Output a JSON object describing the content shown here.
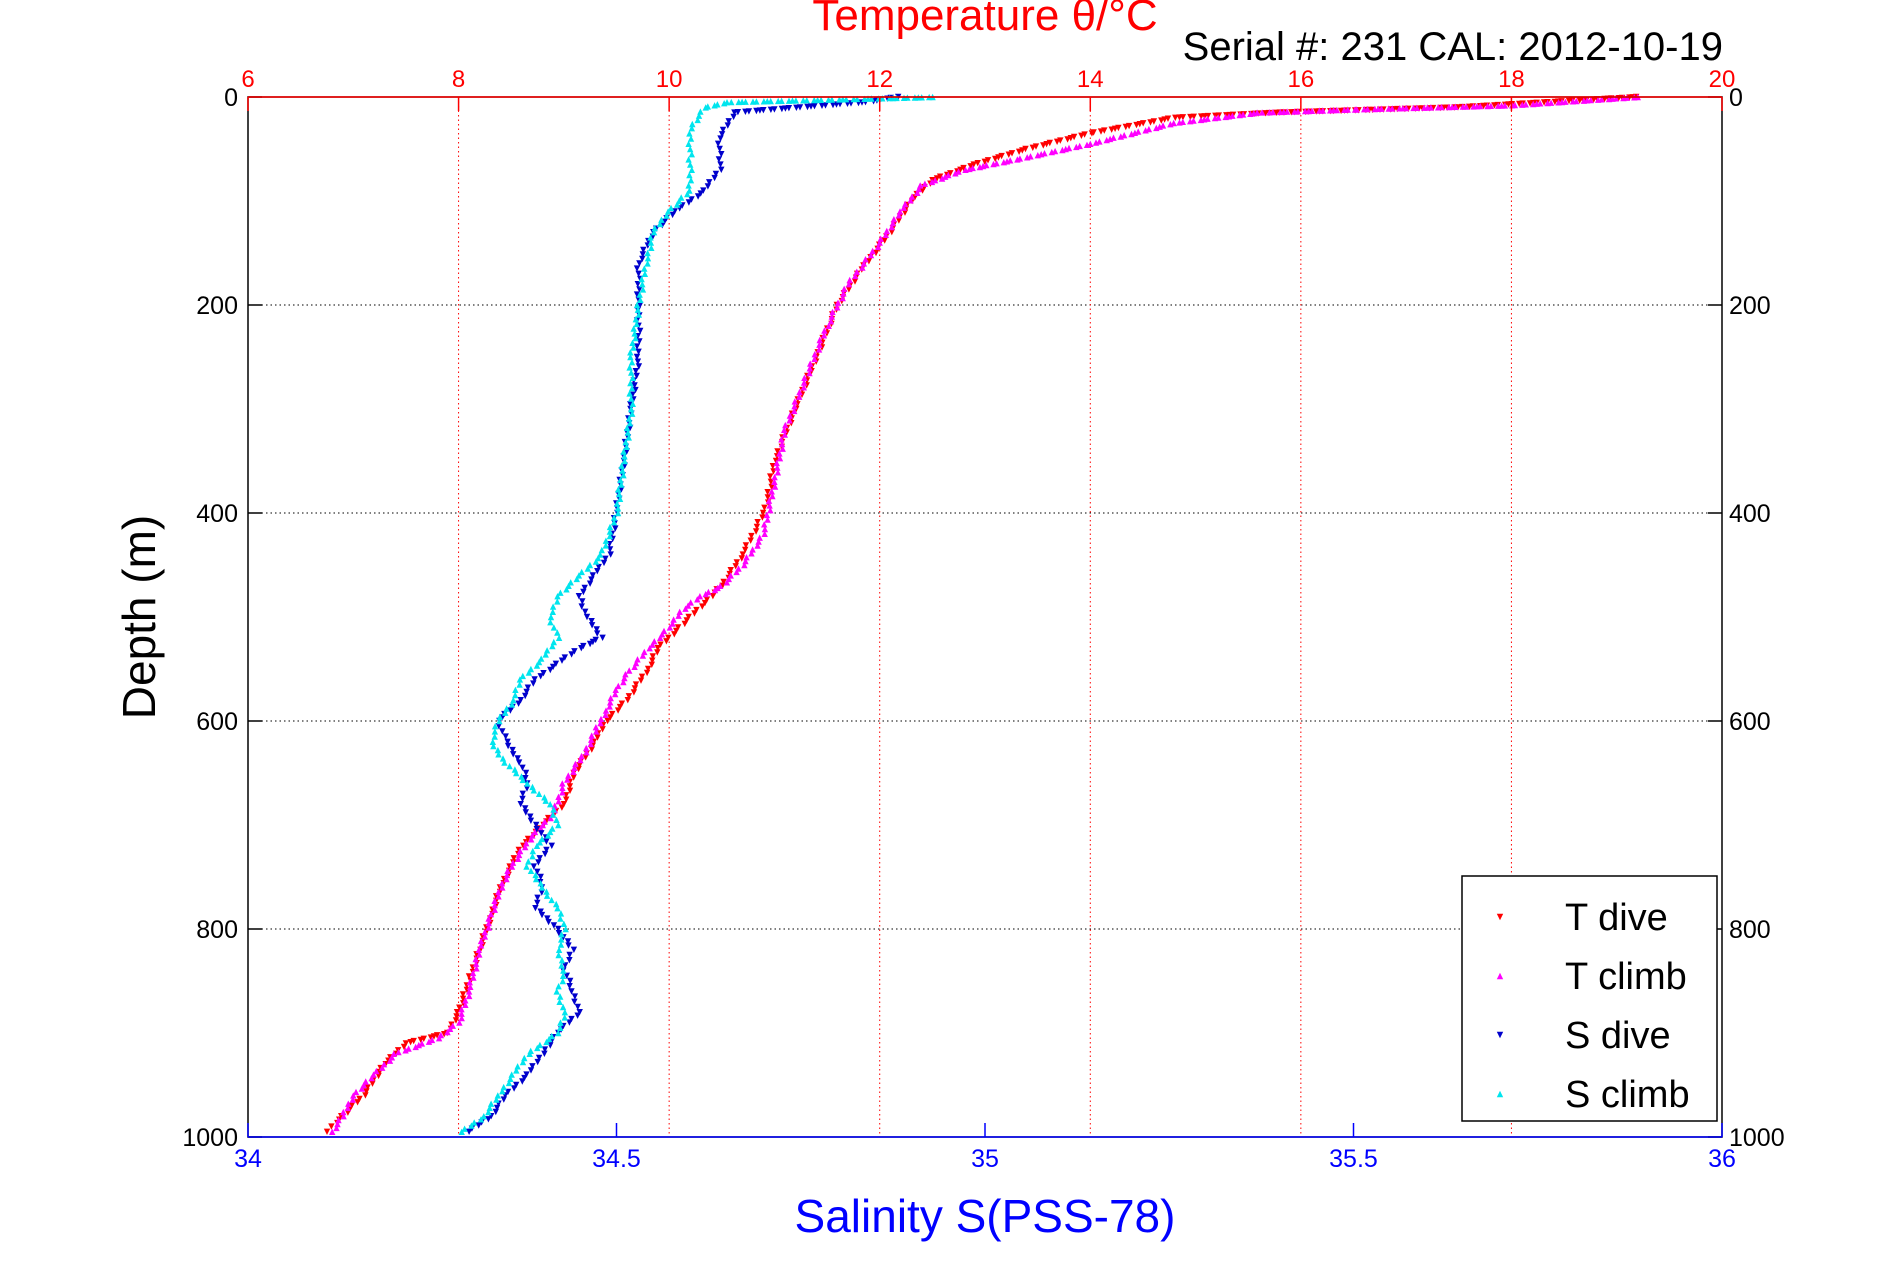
{
  "header": {
    "title": "Temperature θ/°C",
    "subtitle": "Serial #: 231  CAL: 2012-10-19"
  },
  "colors": {
    "background": "#ffffff",
    "temperature_axis": "#ff0000",
    "salinity_axis": "#0000ff",
    "t_dive": "#ff0000",
    "t_climb": "#ff00ff",
    "s_dive": "#0000cc",
    "s_climb": "#00e5ee",
    "grid": "#000000"
  },
  "chart_data": {
    "type": "scatter",
    "title": "Temperature θ/°C",
    "subtitle": "Serial #: 231  CAL: 2012-10-19",
    "ylabel": "Depth (m)",
    "xlabel": "Salinity S(PSS-78)",
    "x_top_label": "Temperature θ/°C",
    "y_reversed": true,
    "grid": true,
    "legend_position": "bottom-right",
    "axes": {
      "depth": {
        "range": [
          0,
          1000
        ],
        "ticks": [
          0,
          200,
          400,
          600,
          800,
          1000
        ]
      },
      "salinity": {
        "range": [
          34,
          36
        ],
        "ticks": [
          34,
          34.5,
          35,
          35.5,
          36
        ],
        "tick_labels": [
          "34",
          "34.5",
          "35",
          "35.5",
          "36"
        ]
      },
      "temperature": {
        "range": [
          6,
          20
        ],
        "ticks": [
          6,
          8,
          10,
          12,
          14,
          16,
          18,
          20
        ],
        "tick_labels": [
          "6",
          "8",
          "10",
          "12",
          "14",
          "16",
          "18",
          "20"
        ]
      }
    },
    "series": [
      {
        "name": "T dive",
        "axis": "temperature",
        "marker": "triangle-down",
        "points": [
          [
            19.2,
            0
          ],
          [
            17.5,
            10
          ],
          [
            15.8,
            15
          ],
          [
            14.8,
            20
          ],
          [
            14.0,
            35
          ],
          [
            13.4,
            50
          ],
          [
            12.9,
            65
          ],
          [
            12.5,
            80
          ],
          [
            12.3,
            100
          ],
          [
            12.1,
            130
          ],
          [
            11.8,
            170
          ],
          [
            11.6,
            200
          ],
          [
            11.4,
            250
          ],
          [
            11.2,
            300
          ],
          [
            11.0,
            350
          ],
          [
            10.95,
            380
          ],
          [
            10.9,
            400
          ],
          [
            10.7,
            440
          ],
          [
            10.5,
            470
          ],
          [
            10.3,
            490
          ],
          [
            10.1,
            510
          ],
          [
            9.9,
            530
          ],
          [
            9.8,
            550
          ],
          [
            9.6,
            580
          ],
          [
            9.4,
            600
          ],
          [
            9.3,
            620
          ],
          [
            9.1,
            650
          ],
          [
            9.0,
            680
          ],
          [
            8.8,
            700
          ],
          [
            8.6,
            720
          ],
          [
            8.5,
            740
          ],
          [
            8.4,
            760
          ],
          [
            8.3,
            790
          ],
          [
            8.2,
            820
          ],
          [
            8.1,
            850
          ],
          [
            8.0,
            880
          ],
          [
            7.9,
            900
          ],
          [
            7.5,
            910
          ],
          [
            7.3,
            930
          ],
          [
            7.1,
            960
          ],
          [
            6.9,
            980
          ],
          [
            6.8,
            990
          ],
          [
            6.75,
            995
          ]
        ]
      },
      {
        "name": "T climb",
        "axis": "temperature",
        "marker": "triangle-up",
        "points": [
          [
            19.2,
            0
          ],
          [
            18.0,
            8
          ],
          [
            16.5,
            12
          ],
          [
            15.6,
            15
          ],
          [
            14.8,
            25
          ],
          [
            14.0,
            45
          ],
          [
            13.3,
            60
          ],
          [
            12.8,
            70
          ],
          [
            12.4,
            85
          ],
          [
            12.2,
            110
          ],
          [
            12.0,
            140
          ],
          [
            11.7,
            180
          ],
          [
            11.5,
            220
          ],
          [
            11.3,
            270
          ],
          [
            11.1,
            320
          ],
          [
            11.0,
            370
          ],
          [
            10.9,
            420
          ],
          [
            10.7,
            450
          ],
          [
            10.5,
            470
          ],
          [
            10.3,
            480
          ],
          [
            10.1,
            495
          ],
          [
            10.0,
            510
          ],
          [
            9.8,
            530
          ],
          [
            9.6,
            555
          ],
          [
            9.5,
            570
          ],
          [
            9.4,
            590
          ],
          [
            9.3,
            610
          ],
          [
            9.2,
            630
          ],
          [
            9.0,
            660
          ],
          [
            8.9,
            690
          ],
          [
            8.7,
            710
          ],
          [
            8.5,
            740
          ],
          [
            8.4,
            760
          ],
          [
            8.3,
            790
          ],
          [
            8.2,
            820
          ],
          [
            8.1,
            860
          ],
          [
            8.0,
            890
          ],
          [
            7.8,
            905
          ],
          [
            7.4,
            920
          ],
          [
            7.2,
            940
          ],
          [
            7.0,
            960
          ],
          [
            6.9,
            980
          ],
          [
            6.8,
            995
          ]
        ]
      },
      {
        "name": "S dive",
        "axis": "salinity",
        "marker": "triangle-down",
        "points": [
          [
            34.88,
            0
          ],
          [
            34.84,
            5
          ],
          [
            34.75,
            10
          ],
          [
            34.66,
            15
          ],
          [
            34.64,
            40
          ],
          [
            34.64,
            70
          ],
          [
            34.62,
            90
          ],
          [
            34.58,
            110
          ],
          [
            34.55,
            130
          ],
          [
            34.53,
            160
          ],
          [
            34.53,
            200
          ],
          [
            34.53,
            250
          ],
          [
            34.52,
            300
          ],
          [
            34.51,
            350
          ],
          [
            34.5,
            400
          ],
          [
            34.49,
            440
          ],
          [
            34.47,
            460
          ],
          [
            34.45,
            480
          ],
          [
            34.46,
            500
          ],
          [
            34.48,
            520
          ],
          [
            34.45,
            530
          ],
          [
            34.42,
            545
          ],
          [
            34.39,
            560
          ],
          [
            34.37,
            580
          ],
          [
            34.34,
            600
          ],
          [
            34.35,
            620
          ],
          [
            34.37,
            640
          ],
          [
            34.38,
            660
          ],
          [
            34.37,
            680
          ],
          [
            34.39,
            700
          ],
          [
            34.41,
            720
          ],
          [
            34.39,
            740
          ],
          [
            34.4,
            760
          ],
          [
            34.39,
            780
          ],
          [
            34.42,
            800
          ],
          [
            34.44,
            820
          ],
          [
            34.43,
            840
          ],
          [
            34.44,
            860
          ],
          [
            34.45,
            880
          ],
          [
            34.42,
            900
          ],
          [
            34.4,
            920
          ],
          [
            34.38,
            940
          ],
          [
            34.35,
            960
          ],
          [
            34.33,
            980
          ],
          [
            34.3,
            995
          ]
        ]
      },
      {
        "name": "S climb",
        "axis": "salinity",
        "marker": "triangle-up",
        "points": [
          [
            34.93,
            0
          ],
          [
            34.65,
            5
          ],
          [
            34.62,
            10
          ],
          [
            34.6,
            30
          ],
          [
            34.6,
            60
          ],
          [
            34.6,
            90
          ],
          [
            34.57,
            110
          ],
          [
            34.55,
            130
          ],
          [
            34.54,
            160
          ],
          [
            34.53,
            200
          ],
          [
            34.52,
            250
          ],
          [
            34.52,
            300
          ],
          [
            34.51,
            350
          ],
          [
            34.5,
            400
          ],
          [
            34.48,
            440
          ],
          [
            34.45,
            460
          ],
          [
            34.42,
            480
          ],
          [
            34.41,
            500
          ],
          [
            34.42,
            520
          ],
          [
            34.4,
            540
          ],
          [
            34.37,
            560
          ],
          [
            34.36,
            580
          ],
          [
            34.34,
            600
          ],
          [
            34.33,
            620
          ],
          [
            34.35,
            640
          ],
          [
            34.38,
            660
          ],
          [
            34.41,
            680
          ],
          [
            34.42,
            700
          ],
          [
            34.39,
            720
          ],
          [
            34.38,
            740
          ],
          [
            34.4,
            760
          ],
          [
            34.42,
            780
          ],
          [
            34.43,
            800
          ],
          [
            34.42,
            820
          ],
          [
            34.43,
            840
          ],
          [
            34.42,
            860
          ],
          [
            34.43,
            880
          ],
          [
            34.42,
            900
          ],
          [
            34.38,
            920
          ],
          [
            34.36,
            940
          ],
          [
            34.34,
            960
          ],
          [
            34.32,
            980
          ],
          [
            34.29,
            995
          ]
        ]
      }
    ]
  }
}
